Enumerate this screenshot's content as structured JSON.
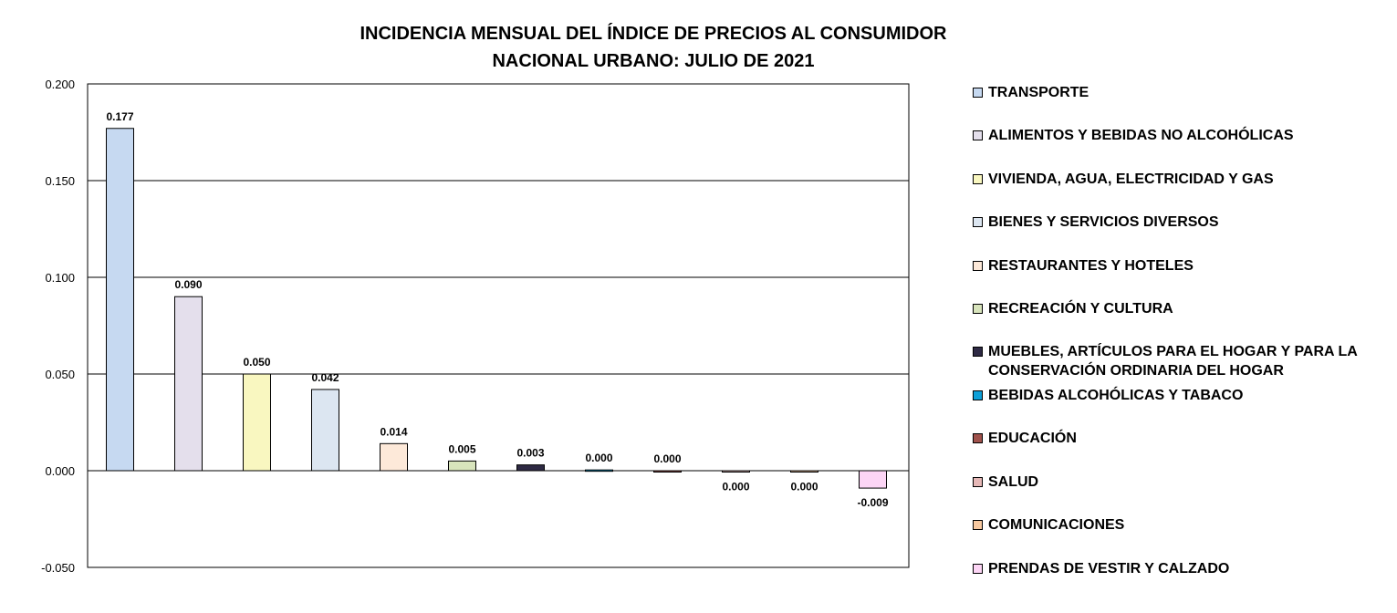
{
  "chart_data": {
    "type": "bar",
    "title_lines": [
      "INCIDENCIA MENSUAL  DEL ÍNDICE DE PRECIOS AL CONSUMIDOR",
      "NACIONAL URBANO: JULIO DE 2021"
    ],
    "xlabel": "",
    "ylabel": "",
    "ylim": [
      -0.05,
      0.2
    ],
    "yticks": [
      "0.200",
      "0.150",
      "0.100",
      "0.050",
      "0.000",
      "-0.050"
    ],
    "ytick_values": [
      0.2,
      0.15,
      0.1,
      0.05,
      0,
      -0.05
    ],
    "grid": true,
    "legend_position": "right",
    "categories": [
      "TRANSPORTE",
      "ALIMENTOS Y BEBIDAS NO ALCOHÓLICAS",
      "VIVIENDA, AGUA, ELECTRICIDAD Y GAS",
      "BIENES Y SERVICIOS DIVERSOS",
      "RESTAURANTES Y HOTELES",
      "RECREACIÓN Y CULTURA",
      "MUEBLES, ARTÍCULOS PARA EL HOGAR Y PARA LA CONSERVACIÓN ORDINARIA DEL HOGAR",
      "BEBIDAS ALCOHÓLICAS Y TABACO",
      "EDUCACIÓN",
      "SALUD",
      "COMUNICACIONES",
      "PRENDAS DE VESTIR Y CALZADO"
    ],
    "values": [
      0.177,
      0.09,
      0.05,
      0.042,
      0.014,
      0.005,
      0.003,
      0.0004,
      0.0,
      -0.0004,
      -0.0004,
      -0.009
    ],
    "value_labels": [
      "0.177",
      "0.090",
      "0.050",
      "0.042",
      "0.014",
      "0.005",
      "0.003",
      "0.000",
      "0.000",
      "0.000",
      "0.000",
      "-0.009"
    ],
    "colors": [
      "#c6d9f1",
      "#e4dfec",
      "#f9f7c0",
      "#dce6f1",
      "#fde9d9",
      "#d8e4bc",
      "#2e2a44",
      "#0ea0d8",
      "#a0524c",
      "#e6b8b7",
      "#f8c9a0",
      "#fcd5f5"
    ]
  }
}
